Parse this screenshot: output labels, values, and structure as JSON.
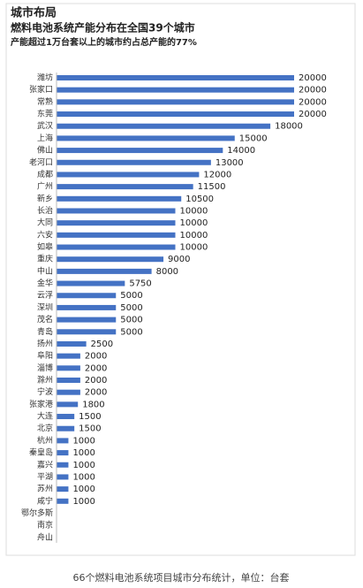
{
  "chart_data": {
    "type": "hbar",
    "title": "城市布局",
    "subtitle": "燃料电池系统产能分布在全国39个城市",
    "annotation": "产能超过1万台套以上的城市约占总产能的77%",
    "caption": "66个燃料电池系统项目城市分布统计，单位：台套",
    "color": "#4472c4",
    "categories": [
      "潍坊",
      "张家口",
      "常熟",
      "东莞",
      "武汉",
      "上海",
      "佛山",
      "老河口",
      "成都",
      "广州",
      "新乡",
      "长治",
      "大同",
      "六安",
      "如皋",
      "重庆",
      "中山",
      "金华",
      "云浮",
      "深圳",
      "茂名",
      "青岛",
      "扬州",
      "阜阳",
      "淄博",
      "滁州",
      "宁波",
      "张家港",
      "大连",
      "北京",
      "杭州",
      "秦皇岛",
      "嘉兴",
      "平湖",
      "苏州",
      "咸宁",
      "鄂尔多斯",
      "南京",
      "舟山"
    ],
    "values": [
      20000,
      20000,
      20000,
      20000,
      18000,
      15000,
      14000,
      13000,
      12000,
      11500,
      10500,
      10000,
      10000,
      10000,
      10000,
      9000,
      8000,
      5750,
      5000,
      5000,
      5000,
      5000,
      2500,
      2000,
      2000,
      2000,
      2000,
      1800,
      1500,
      1500,
      1000,
      1000,
      1000,
      1000,
      1000,
      1000,
      null,
      null,
      null
    ]
  }
}
